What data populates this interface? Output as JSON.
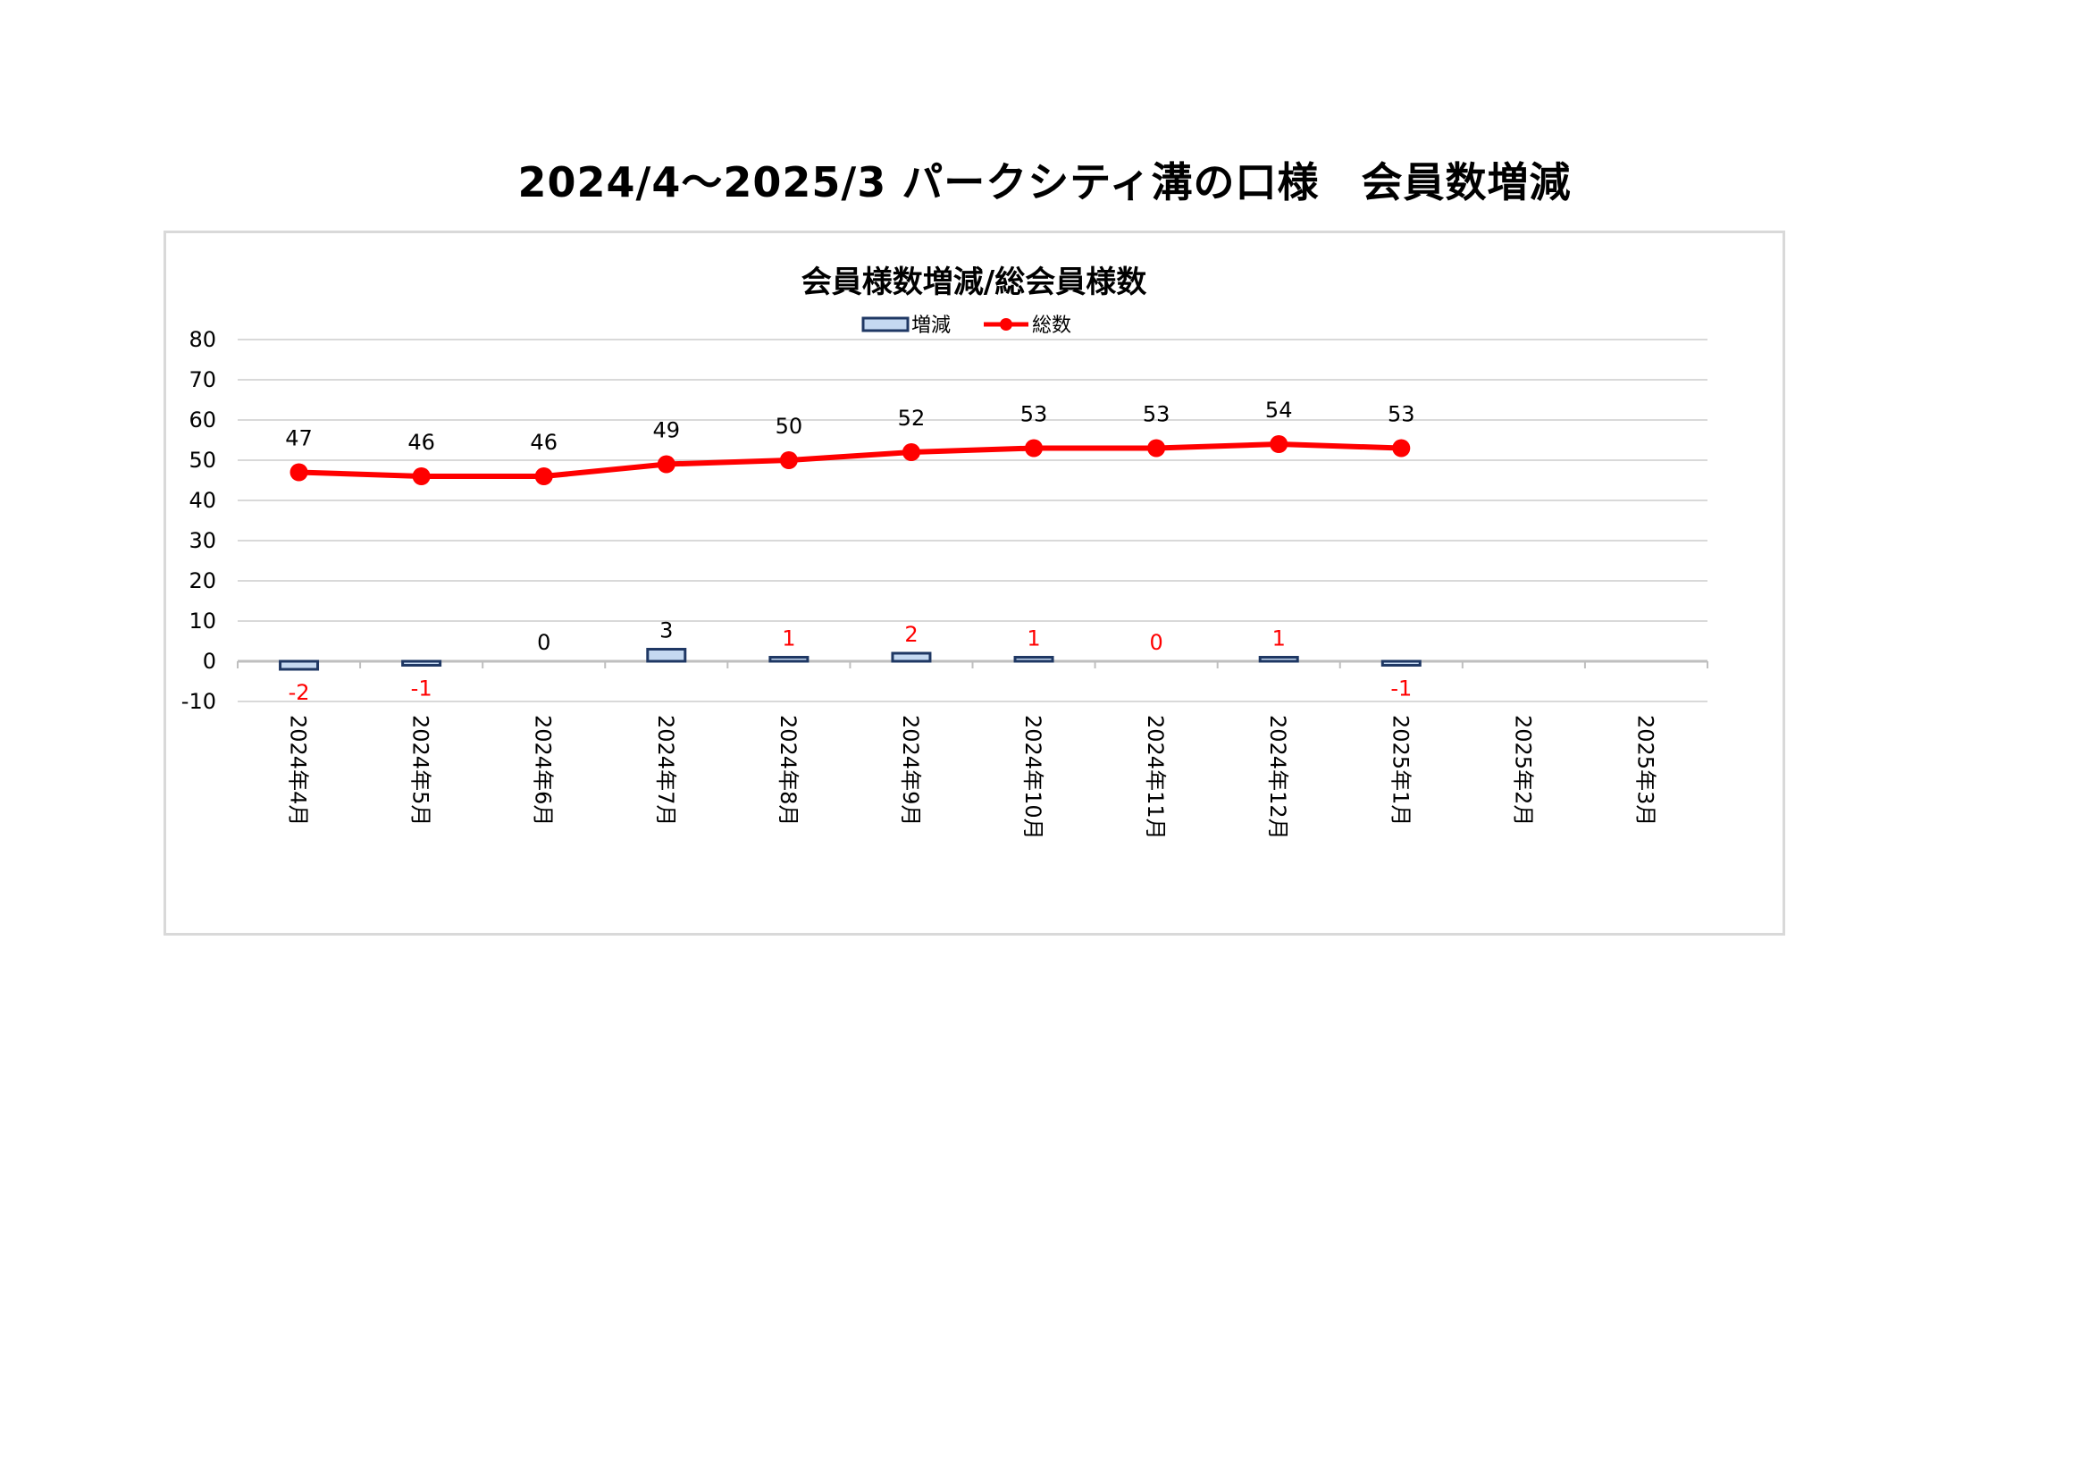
{
  "page_title": "2024/4～2025/3 パークシティ溝の口様　会員数増減",
  "chart_data": {
    "type": "bar+line",
    "title": "会員様数増減/総会員様数",
    "categories": [
      "2024年4月",
      "2024年5月",
      "2024年6月",
      "2024年7月",
      "2024年8月",
      "2024年9月",
      "2024年10月",
      "2024年11月",
      "2024年12月",
      "2025年1月",
      "2025年2月",
      "2025年3月"
    ],
    "series": [
      {
        "name": "増減",
        "type": "bar",
        "values": [
          -2,
          -1,
          0,
          3,
          1,
          2,
          1,
          0,
          1,
          -1,
          null,
          null
        ],
        "labels": [
          "-2",
          "-1",
          "0",
          "3",
          "1",
          "2",
          "1",
          "0",
          "1",
          "-1",
          null,
          null
        ],
        "label_colors": [
          "#ff0000",
          "#ff0000",
          "#000000",
          "#000000",
          "#ff0000",
          "#ff0000",
          "#ff0000",
          "#ff0000",
          "#ff0000",
          "#ff0000",
          null,
          null
        ],
        "fill": "#c5d9f1",
        "stroke": "#1f3864"
      },
      {
        "name": "総数",
        "type": "line",
        "values": [
          47,
          46,
          46,
          49,
          50,
          52,
          53,
          53,
          54,
          53,
          null,
          null
        ],
        "labels": [
          "47",
          "46",
          "46",
          "49",
          "50",
          "52",
          "53",
          "53",
          "54",
          "53",
          null,
          null
        ],
        "color": "#ff0000"
      }
    ],
    "ylim": [
      -10,
      80
    ],
    "yticks": [
      "-10",
      "0",
      "10",
      "20",
      "30",
      "40",
      "50",
      "60",
      "70",
      "80"
    ],
    "grid": true,
    "legend": "top-center"
  }
}
